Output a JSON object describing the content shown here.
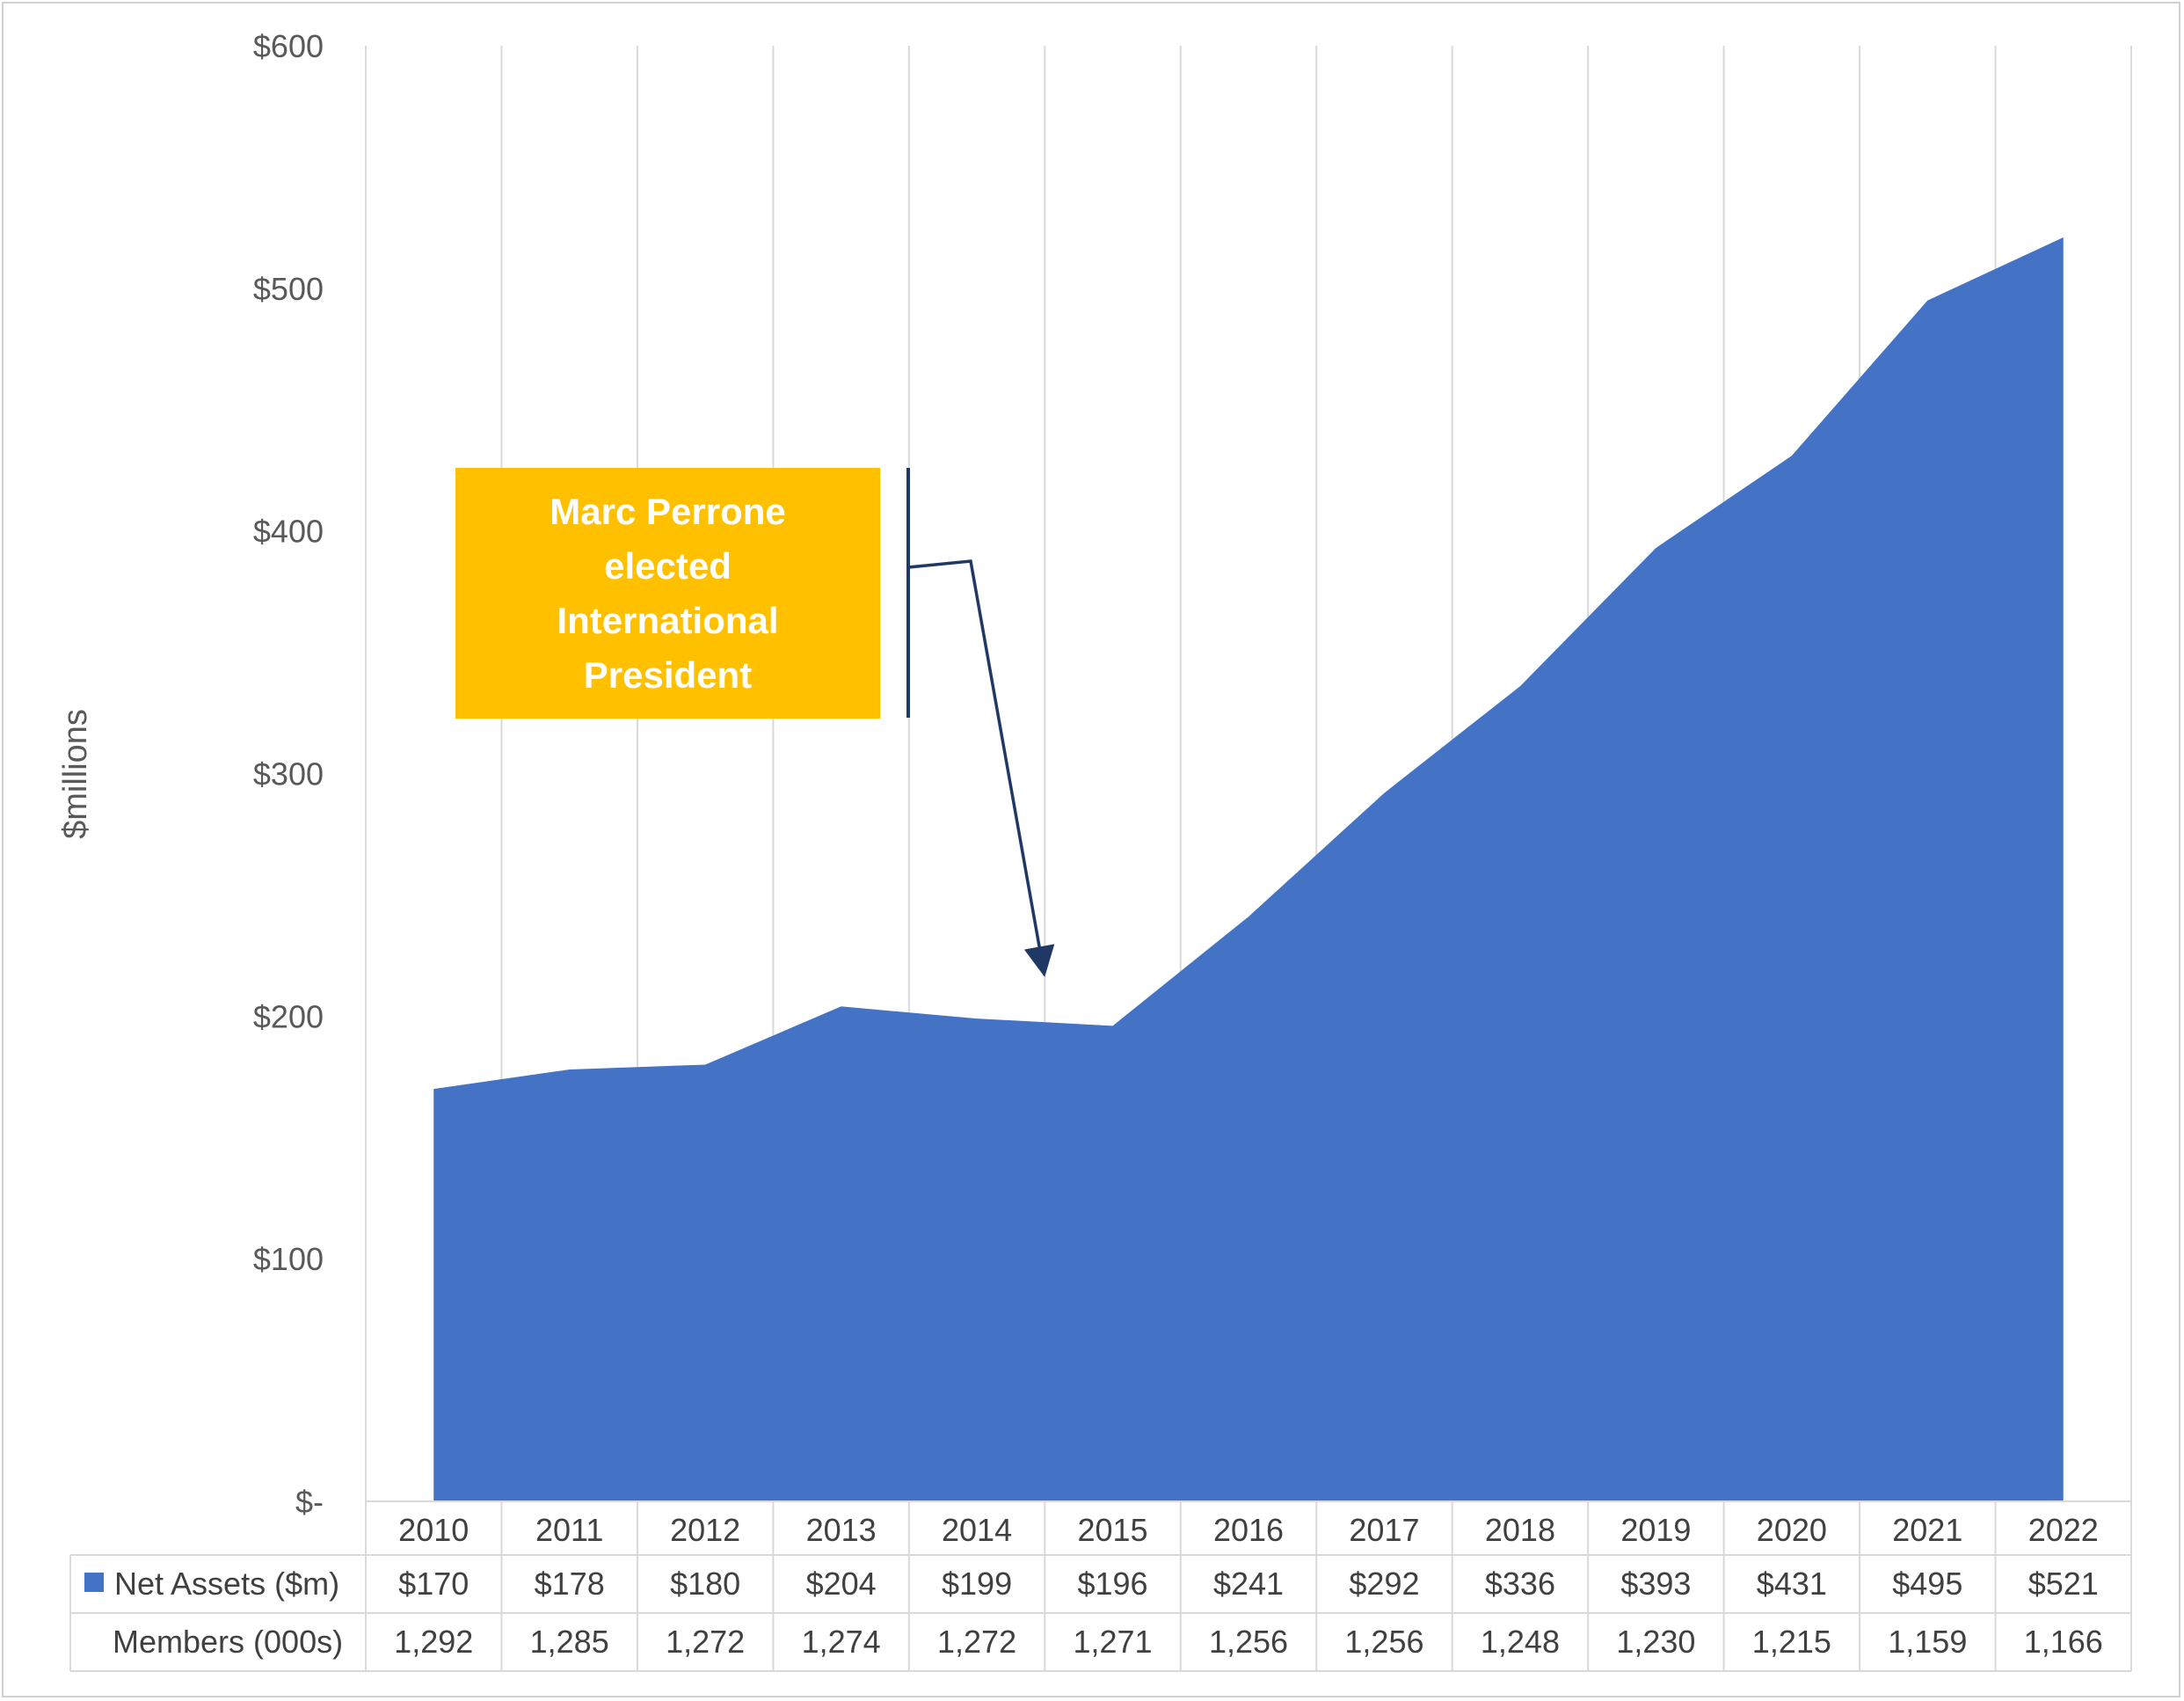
{
  "chart_data": {
    "type": "area",
    "categories": [
      "2010",
      "2011",
      "2012",
      "2013",
      "2014",
      "2015",
      "2016",
      "2017",
      "2018",
      "2019",
      "2020",
      "2021",
      "2022"
    ],
    "series": [
      {
        "name": "Net Assets ($m)",
        "color": "#4472c4",
        "values": [
          170,
          178,
          180,
          204,
          199,
          196,
          241,
          292,
          336,
          393,
          431,
          495,
          521
        ],
        "labels": [
          "$170",
          "$178",
          "$180",
          "$204",
          "$199",
          "$196",
          "$241",
          "$292",
          "$336",
          "$393",
          "$431",
          "$495",
          "$521"
        ]
      }
    ],
    "data_table": [
      {
        "row_label": "Net Assets ($m)",
        "cells": [
          "$170",
          "$178",
          "$180",
          "$204",
          "$199",
          "$196",
          "$241",
          "$292",
          "$336",
          "$393",
          "$431",
          "$495",
          "$521"
        ]
      },
      {
        "row_label": "Members (000s)",
        "cells": [
          "1,292",
          "1,285",
          "1,272",
          "1,274",
          "1,272",
          "1,271",
          "1,256",
          "1,256",
          "1,248",
          "1,230",
          "1,215",
          "1,159",
          "1,166"
        ]
      }
    ],
    "ylabel": "$millions",
    "ylim": [
      0,
      600
    ],
    "yticks": [
      0,
      100,
      200,
      300,
      400,
      500,
      600
    ],
    "ytick_labels": [
      "$-",
      "$100",
      "$200",
      "$300",
      "$400",
      "$500",
      "$600"
    ],
    "grid": "vertical",
    "legend": "data table",
    "annotation": {
      "text": [
        "Marc Perrone",
        "elected",
        "International",
        "President"
      ],
      "box_color": "#ffc000",
      "arrow_color": "#1f3864",
      "points_to": "2014"
    }
  }
}
